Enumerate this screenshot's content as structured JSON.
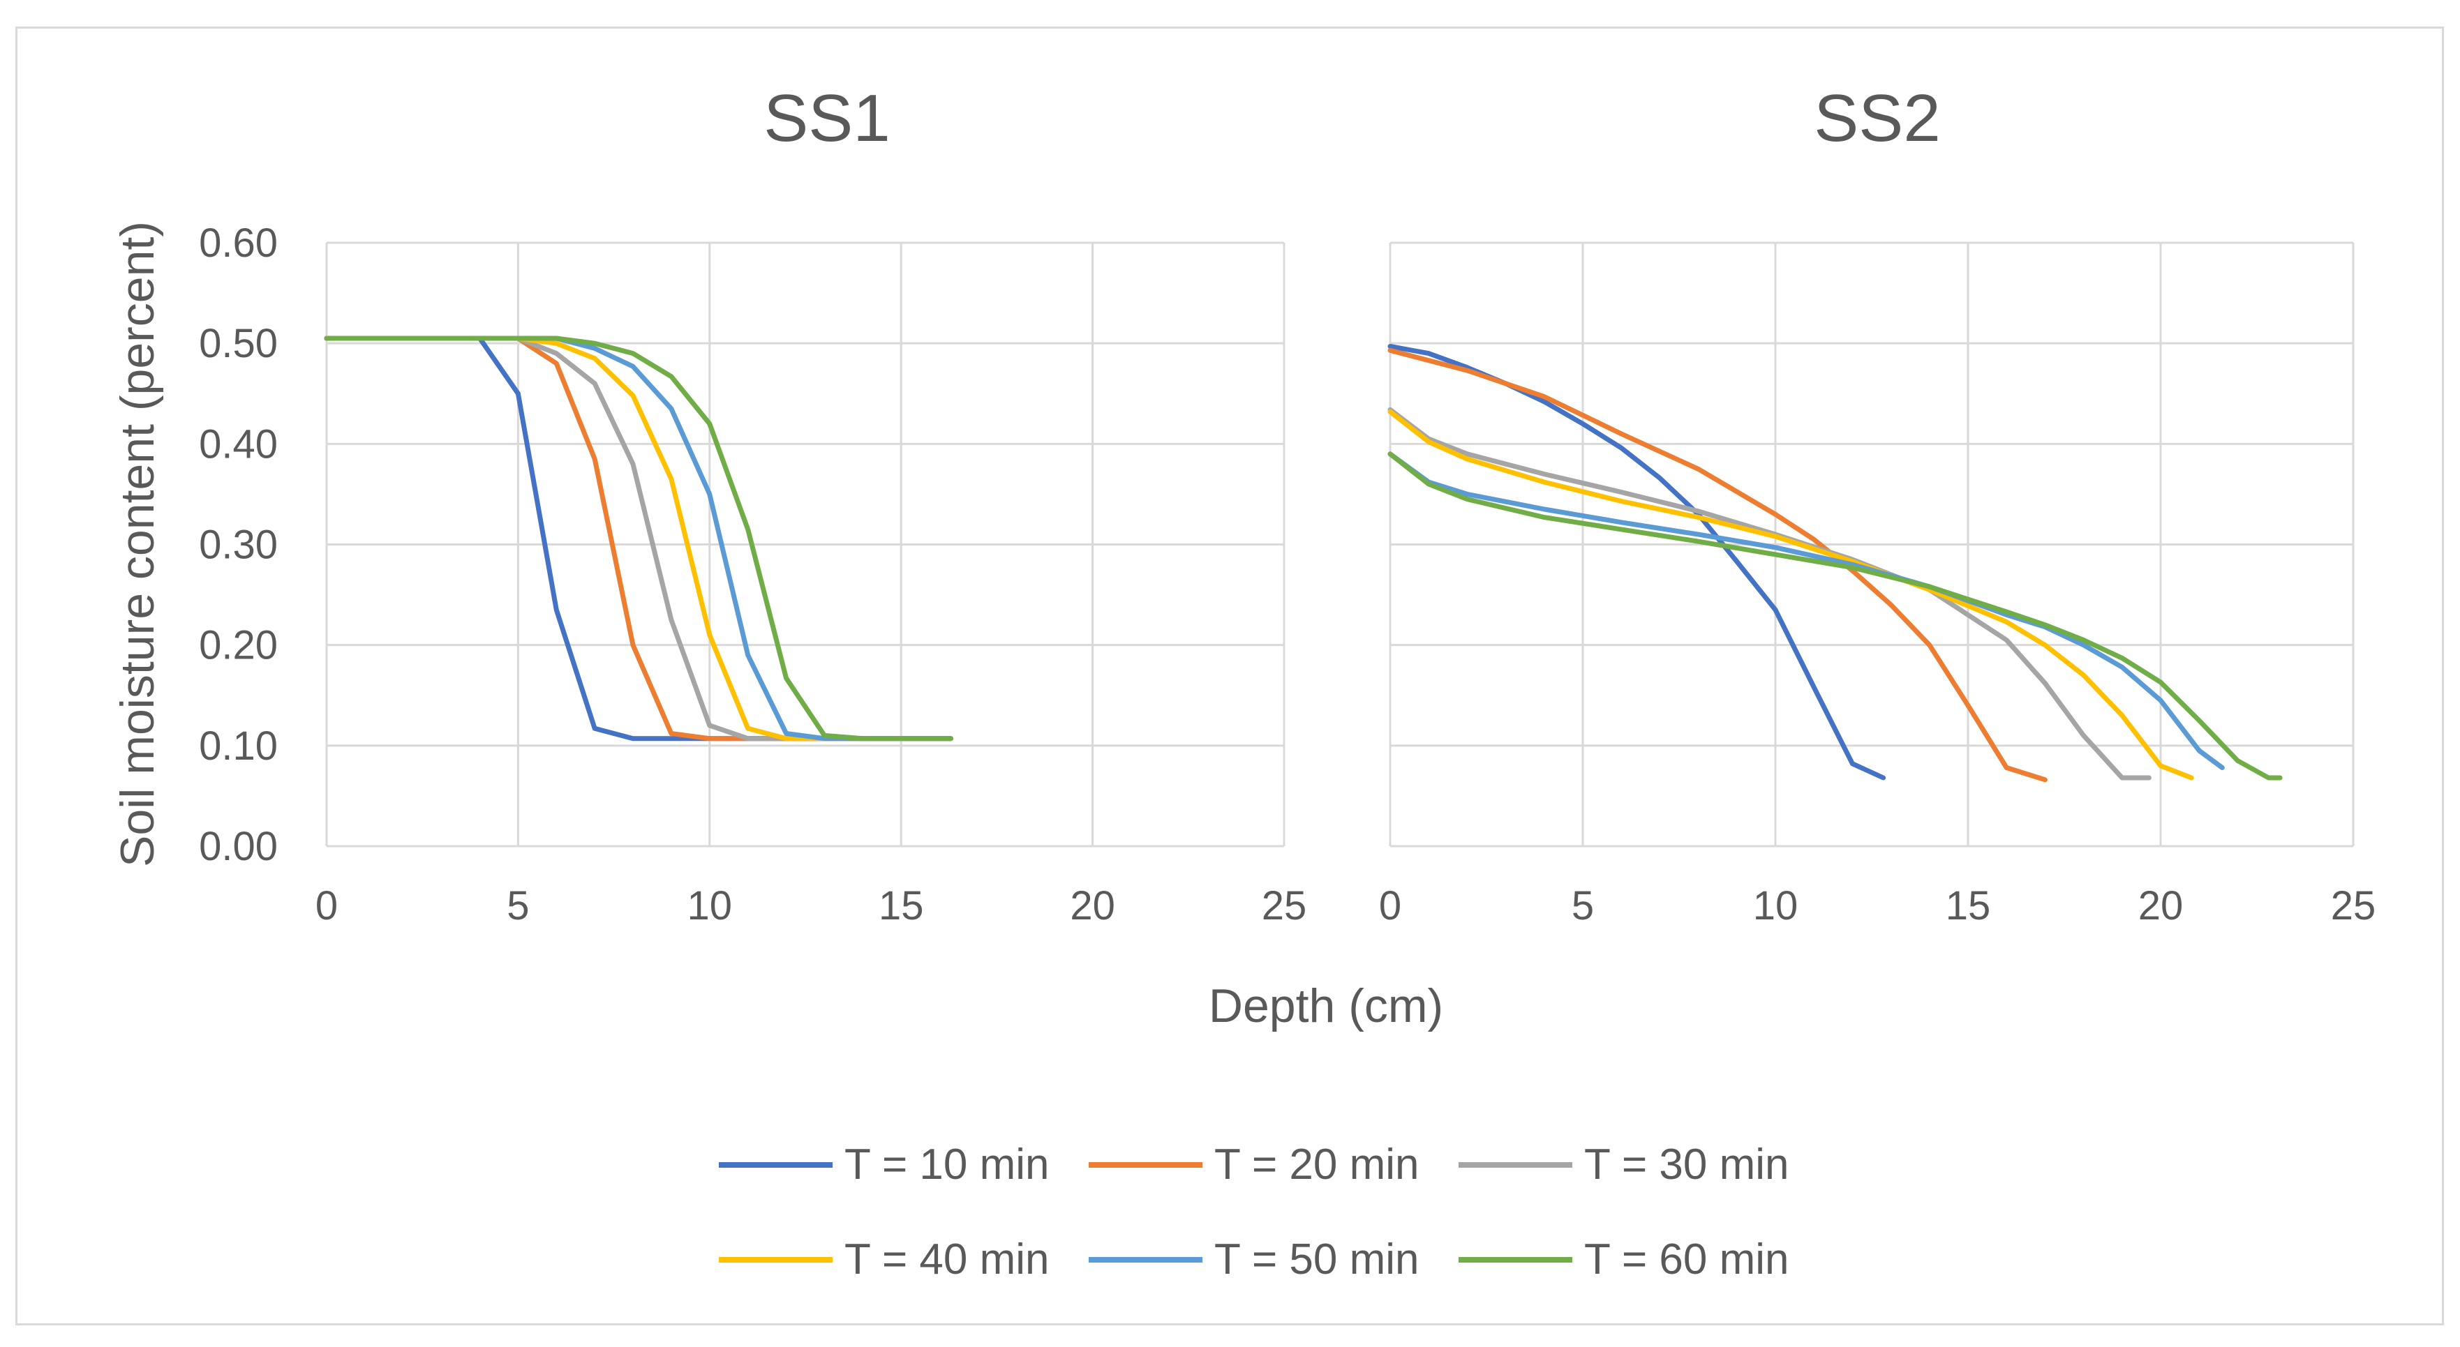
{
  "chart_data": [
    {
      "type": "line",
      "title": "SS1",
      "xlabel": "Depth (cm)",
      "ylabel": "Soil moisture content (percent)",
      "xlim": [
        0,
        25
      ],
      "ylim": [
        0,
        0.6
      ],
      "x_ticks": [
        "0",
        "5",
        "10",
        "15",
        "20",
        "25"
      ],
      "y_ticks": [
        "0.00",
        "0.10",
        "0.20",
        "0.30",
        "0.40",
        "0.50",
        "0.60"
      ],
      "grid": true,
      "series": [
        {
          "name": "T = 10 min",
          "color": "#4472C4",
          "x": [
            0,
            4,
            5,
            6,
            7,
            8,
            9,
            10,
            11,
            12,
            13,
            14,
            15,
            16,
            16.3
          ],
          "y": [
            0.505,
            0.505,
            0.45,
            0.235,
            0.117,
            0.107,
            0.107,
            0.107,
            0.107,
            0.107,
            0.107,
            0.107,
            0.107,
            0.107,
            0.107
          ]
        },
        {
          "name": "T = 20 min",
          "color": "#ED7D31",
          "x": [
            0,
            5,
            6,
            7,
            8,
            9,
            10,
            11,
            12,
            13,
            14,
            15,
            16,
            16.3
          ],
          "y": [
            0.505,
            0.505,
            0.48,
            0.385,
            0.2,
            0.112,
            0.107,
            0.107,
            0.107,
            0.107,
            0.107,
            0.107,
            0.107,
            0.107
          ]
        },
        {
          "name": "T = 30 min",
          "color": "#A5A5A5",
          "x": [
            0,
            5,
            6,
            7,
            8,
            9,
            10,
            11,
            12,
            13,
            14,
            15,
            16,
            16.3
          ],
          "y": [
            0.505,
            0.505,
            0.49,
            0.46,
            0.38,
            0.225,
            0.12,
            0.107,
            0.107,
            0.107,
            0.107,
            0.107,
            0.107,
            0.107
          ]
        },
        {
          "name": "T = 40 min",
          "color": "#FFC000",
          "x": [
            0,
            5,
            6,
            7,
            8,
            9,
            10,
            11,
            12,
            13,
            14,
            15,
            16,
            16.3
          ],
          "y": [
            0.505,
            0.505,
            0.5,
            0.485,
            0.448,
            0.365,
            0.21,
            0.117,
            0.107,
            0.107,
            0.107,
            0.107,
            0.107,
            0.107
          ]
        },
        {
          "name": "T = 50 min",
          "color": "#5B9BD5",
          "x": [
            0,
            6,
            7,
            8,
            9,
            10,
            11,
            12,
            13,
            14,
            15,
            16,
            16.3
          ],
          "y": [
            0.505,
            0.505,
            0.495,
            0.477,
            0.435,
            0.35,
            0.19,
            0.112,
            0.107,
            0.107,
            0.107,
            0.107,
            0.107
          ]
        },
        {
          "name": "T = 60 min",
          "color": "#70AD47",
          "x": [
            0,
            6,
            7,
            8,
            9,
            10,
            11,
            12,
            13,
            14,
            15,
            16,
            16.3
          ],
          "y": [
            0.505,
            0.505,
            0.5,
            0.49,
            0.467,
            0.42,
            0.315,
            0.167,
            0.11,
            0.107,
            0.107,
            0.107,
            0.107
          ]
        }
      ]
    },
    {
      "type": "line",
      "title": "SS2",
      "xlabel": "Depth (cm)",
      "xlim": [
        0,
        25
      ],
      "ylim": [
        0,
        0.6
      ],
      "x_ticks": [
        "0",
        "5",
        "10",
        "15",
        "20",
        "25"
      ],
      "grid": true,
      "series": [
        {
          "name": "T = 10 min",
          "color": "#4472C4",
          "x": [
            0,
            1,
            2,
            3,
            4,
            5,
            6,
            7,
            8,
            9,
            10,
            11,
            12,
            12.8
          ],
          "y": [
            0.497,
            0.49,
            0.476,
            0.46,
            0.442,
            0.42,
            0.396,
            0.366,
            0.33,
            0.283,
            0.235,
            0.158,
            0.082,
            0.068
          ]
        },
        {
          "name": "T = 20 min",
          "color": "#ED7D31",
          "x": [
            0,
            2,
            4,
            6,
            8,
            10,
            11,
            12,
            13,
            14,
            15,
            16,
            17
          ],
          "y": [
            0.493,
            0.473,
            0.447,
            0.41,
            0.375,
            0.33,
            0.305,
            0.274,
            0.24,
            0.2,
            0.14,
            0.078,
            0.066
          ]
        },
        {
          "name": "T = 30 min",
          "color": "#A5A5A5",
          "x": [
            0,
            1,
            2,
            4,
            6,
            8,
            10,
            12,
            14,
            16,
            17,
            18,
            19,
            19.7
          ],
          "y": [
            0.434,
            0.405,
            0.39,
            0.37,
            0.352,
            0.333,
            0.31,
            0.285,
            0.255,
            0.205,
            0.162,
            0.11,
            0.068,
            0.068
          ]
        },
        {
          "name": "T = 40 min",
          "color": "#FFC000",
          "x": [
            0,
            1,
            2,
            4,
            6,
            8,
            10,
            12,
            14,
            16,
            17,
            18,
            19,
            20,
            20.8
          ],
          "y": [
            0.432,
            0.402,
            0.385,
            0.362,
            0.343,
            0.327,
            0.308,
            0.283,
            0.255,
            0.223,
            0.2,
            0.17,
            0.13,
            0.08,
            0.068
          ]
        },
        {
          "name": "T = 50 min",
          "color": "#5B9BD5",
          "x": [
            0,
            1,
            2,
            4,
            6,
            8,
            10,
            12,
            14,
            16,
            17,
            18,
            19,
            20,
            21,
            21.6
          ],
          "y": [
            0.39,
            0.362,
            0.35,
            0.335,
            0.322,
            0.31,
            0.297,
            0.28,
            0.258,
            0.23,
            0.218,
            0.2,
            0.178,
            0.145,
            0.095,
            0.078
          ]
        },
        {
          "name": "T = 60 min",
          "color": "#70AD47",
          "x": [
            0,
            1,
            2,
            4,
            6,
            8,
            10,
            12,
            14,
            16,
            17,
            18,
            19,
            20,
            21,
            22,
            22.8,
            23.1
          ],
          "y": [
            0.39,
            0.36,
            0.345,
            0.327,
            0.315,
            0.303,
            0.29,
            0.277,
            0.258,
            0.233,
            0.22,
            0.205,
            0.187,
            0.163,
            0.125,
            0.085,
            0.068,
            0.068
          ]
        }
      ]
    }
  ],
  "legend": {
    "items": [
      {
        "label": "T = 10 min",
        "color": "#4472C4"
      },
      {
        "label": "T = 20 min",
        "color": "#ED7D31"
      },
      {
        "label": "T = 30 min",
        "color": "#A5A5A5"
      },
      {
        "label": "T = 40 min",
        "color": "#FFC000"
      },
      {
        "label": "T = 50 min",
        "color": "#5B9BD5"
      },
      {
        "label": "T = 60 min",
        "color": "#70AD47"
      }
    ]
  },
  "colors": {
    "grid": "#D9D9D9",
    "text": "#595959"
  }
}
